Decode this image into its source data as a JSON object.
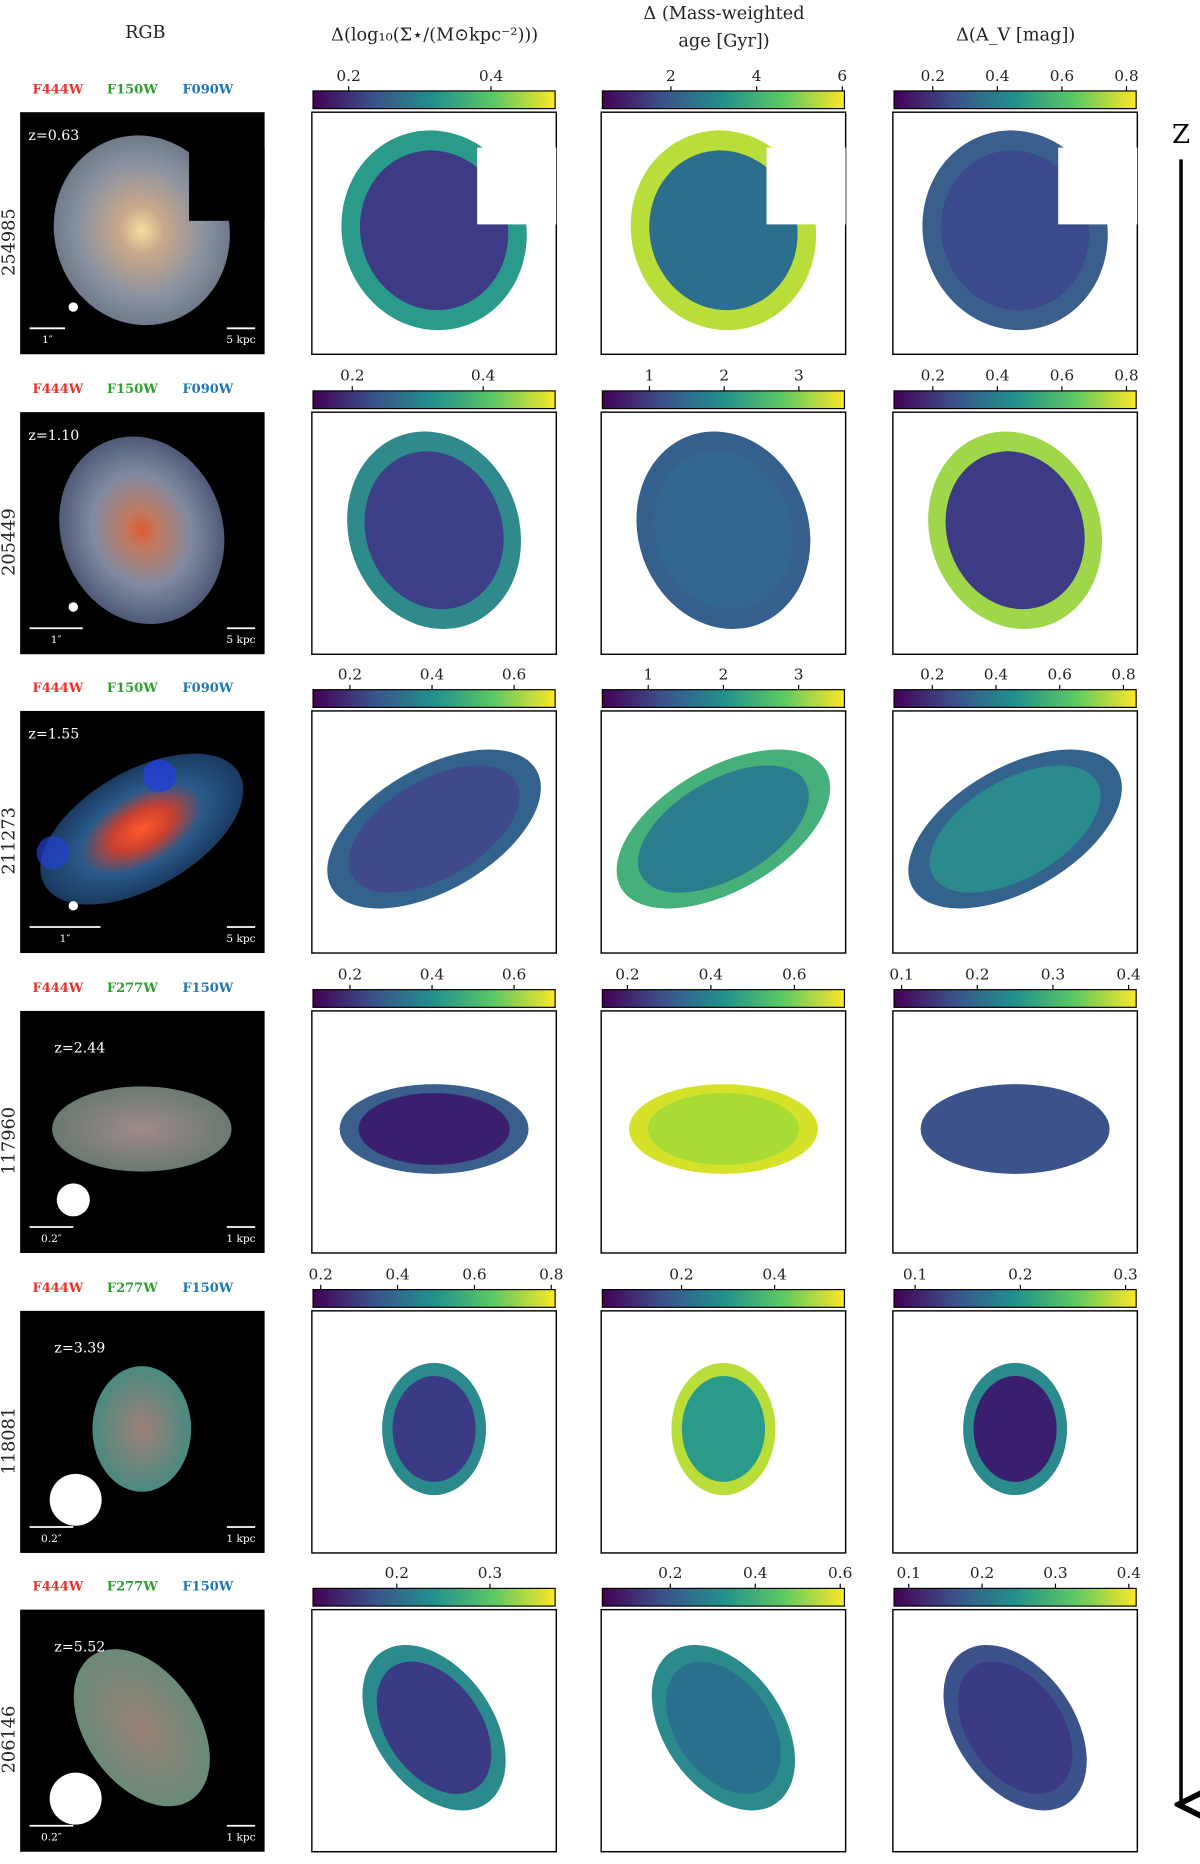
{
  "columns": [
    "RGB",
    "Δ(log₁₀(Σ⋆/(M⊙kpc⁻²)))",
    [
      "Δ (Mass-weighted",
      "age [Gyr])"
    ],
    "Δ(A_V [mag])"
  ],
  "axis_label": "Z",
  "rows": [
    {
      "id": "254985",
      "z": "z=0.63",
      "filters": [
        "F444W",
        "F150W",
        "F090W"
      ],
      "scalebar_angle": "1″",
      "scalebar_phys": "5 kpc",
      "colorbars": [
        {
          "lim": [
            0.15,
            0.49
          ],
          "ticks": [
            0.2,
            0.4
          ]
        },
        {
          "lim": [
            0.4,
            6.05
          ],
          "ticks": [
            2,
            4,
            6
          ]
        },
        {
          "lim": [
            0.08,
            0.83
          ],
          "ticks": [
            0.2,
            0.4,
            0.6,
            0.8
          ]
        }
      ]
    },
    {
      "id": "205449",
      "z": "z=1.10",
      "filters": [
        "F444W",
        "F150W",
        "F090W"
      ],
      "scalebar_angle": "1″",
      "scalebar_phys": "5 kpc",
      "colorbars": [
        {
          "lim": [
            0.14,
            0.51
          ],
          "ticks": [
            0.2,
            0.4
          ]
        },
        {
          "lim": [
            0.37,
            3.61
          ],
          "ticks": [
            1,
            2,
            3
          ]
        },
        {
          "lim": [
            0.08,
            0.83
          ],
          "ticks": [
            0.2,
            0.4,
            0.6,
            0.8
          ]
        }
      ]
    },
    {
      "id": "211273",
      "z": "z=1.55",
      "filters": [
        "F444W",
        "F150W",
        "F090W"
      ],
      "scalebar_angle": "1″",
      "scalebar_phys": "5 kpc",
      "colorbars": [
        {
          "lim": [
            0.11,
            0.7
          ],
          "ticks": [
            0.2,
            0.4,
            0.6
          ]
        },
        {
          "lim": [
            0.39,
            3.61
          ],
          "ticks": [
            1,
            2,
            3
          ]
        },
        {
          "lim": [
            0.08,
            0.84
          ],
          "ticks": [
            0.2,
            0.4,
            0.6,
            0.8
          ]
        }
      ]
    },
    {
      "id": "117960",
      "z": "z=2.44",
      "filters": [
        "F444W",
        "F277W",
        "F150W"
      ],
      "scalebar_angle": "0.2″",
      "scalebar_phys": "1 kpc",
      "colorbars": [
        {
          "lim": [
            0.11,
            0.7
          ],
          "ticks": [
            0.2,
            0.4,
            0.6
          ]
        },
        {
          "lim": [
            0.14,
            0.72
          ],
          "ticks": [
            0.2,
            0.4,
            0.6
          ]
        },
        {
          "lim": [
            0.09,
            0.41
          ],
          "ticks": [
            0.1,
            0.2,
            0.3,
            0.4
          ]
        }
      ]
    },
    {
      "id": "118081",
      "z": "z=3.39",
      "filters": [
        "F444W",
        "F277W",
        "F150W"
      ],
      "scalebar_angle": "0.2″",
      "scalebar_phys": "1 kpc",
      "colorbars": [
        {
          "lim": [
            0.18,
            0.81
          ],
          "ticks": [
            0.2,
            0.4,
            0.6,
            0.8
          ]
        },
        {
          "lim": [
            0.03,
            0.55
          ],
          "ticks": [
            0.2,
            0.4
          ]
        },
        {
          "lim": [
            0.08,
            0.31
          ],
          "ticks": [
            0.1,
            0.2,
            0.3
          ]
        }
      ]
    },
    {
      "id": "206146",
      "z": "z=5.52",
      "filters": [
        "F444W",
        "F277W",
        "F150W"
      ],
      "scalebar_angle": "0.2″",
      "scalebar_phys": "1 kpc",
      "colorbars": [
        {
          "lim": [
            0.11,
            0.37
          ],
          "ticks": [
            0.2,
            0.3
          ]
        },
        {
          "lim": [
            0.04,
            0.61
          ],
          "ticks": [
            0.2,
            0.4,
            0.6
          ]
        },
        {
          "lim": [
            0.08,
            0.41
          ],
          "ticks": [
            0.1,
            0.2,
            0.3,
            0.4
          ]
        }
      ]
    }
  ]
}
